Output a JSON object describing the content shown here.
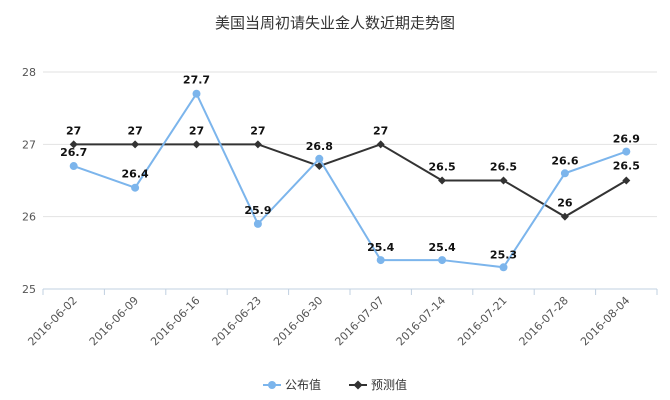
{
  "chart_data": {
    "type": "line",
    "title": "美国当周初请失业金人数近期走势图",
    "categories": [
      "2016-06-02",
      "2016-06-09",
      "2016-06-16",
      "2016-06-23",
      "2016-06-30",
      "2016-07-07",
      "2016-07-14",
      "2016-07-21",
      "2016-07-28",
      "2016-08-04"
    ],
    "series": [
      {
        "name": "公布值",
        "color": "#7cb5ec",
        "marker": "circle",
        "values": [
          26.7,
          26.4,
          27.7,
          25.9,
          26.8,
          25.4,
          25.4,
          25.3,
          26.6,
          26.9
        ]
      },
      {
        "name": "预测值",
        "color": "#333333",
        "marker": "diamond",
        "values": [
          27,
          27,
          27,
          27,
          26.7,
          27,
          26.5,
          26.5,
          26,
          26.5
        ]
      }
    ],
    "y_ticks": [
      "25",
      "26",
      "27",
      "28"
    ],
    "ylim": [
      25,
      28
    ],
    "grid": "horizontal",
    "legend": "bottom-center",
    "labels_shown": {
      "公布值": [
        "26.7",
        "26.4",
        "27.7",
        "25.9",
        "26.8",
        "25.4",
        "25.4",
        "25.3",
        "26.6",
        "26.9"
      ],
      "预测值": [
        "27",
        "27",
        "27",
        "27",
        "",
        "27",
        "26.5",
        "26.5",
        "26",
        "26.5"
      ]
    }
  }
}
